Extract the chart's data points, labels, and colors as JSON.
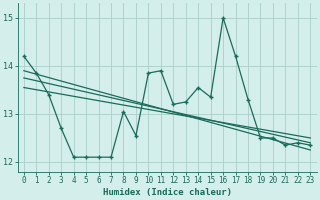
{
  "x": [
    0,
    1,
    2,
    3,
    4,
    5,
    6,
    7,
    8,
    9,
    10,
    11,
    12,
    13,
    14,
    15,
    16,
    17,
    18,
    19,
    20,
    21,
    22,
    23
  ],
  "y_main": [
    14.2,
    13.85,
    13.4,
    12.7,
    12.1,
    12.1,
    12.1,
    12.1,
    13.05,
    12.55,
    13.85,
    13.9,
    13.2,
    13.25,
    13.55,
    13.35,
    15.0,
    14.2,
    13.3,
    12.5,
    12.5,
    12.35,
    12.4,
    12.35
  ],
  "trend1_x": [
    0,
    23
  ],
  "trend1_y": [
    13.9,
    12.25
  ],
  "trend2_x": [
    0,
    23
  ],
  "trend2_y": [
    13.75,
    12.4
  ],
  "trend3_x": [
    0,
    23
  ],
  "trend3_y": [
    13.55,
    12.5
  ],
  "color": "#1a6b5a",
  "bg_color": "#d4eeeb",
  "grid_color": "#aacec8",
  "xlabel": "Humidex (Indice chaleur)",
  "ylim": [
    11.8,
    15.3
  ],
  "xlim": [
    -0.5,
    23.5
  ],
  "yticks": [
    12,
    13,
    14,
    15
  ],
  "xticks": [
    0,
    1,
    2,
    3,
    4,
    5,
    6,
    7,
    8,
    9,
    10,
    11,
    12,
    13,
    14,
    15,
    16,
    17,
    18,
    19,
    20,
    21,
    22,
    23
  ]
}
